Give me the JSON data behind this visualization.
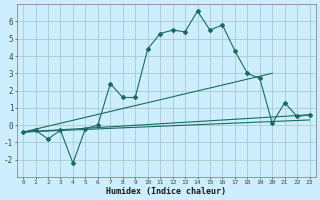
{
  "xlabel": "Humidex (Indice chaleur)",
  "background_color": "#cceeff",
  "grid_color": "#aacccc",
  "line_color": "#1a6b5e",
  "x_values": [
    0,
    1,
    2,
    3,
    4,
    5,
    6,
    7,
    8,
    9,
    10,
    11,
    12,
    13,
    14,
    15,
    16,
    17,
    18,
    19,
    20,
    21,
    22,
    23
  ],
  "series1": [
    -0.4,
    -0.3,
    -0.8,
    -0.3,
    -2.2,
    -0.2,
    0.0,
    2.4,
    1.6,
    1.6,
    4.4,
    5.3,
    5.5,
    5.4,
    6.6,
    5.5,
    5.8,
    4.3,
    3.0,
    2.7,
    0.1,
    1.3,
    0.5,
    0.6
  ],
  "line_start_x": 0,
  "line_start_y": -0.4,
  "line1_end_x": 23,
  "line1_end_y": 0.6,
  "line2_end_x": 20,
  "line2_end_y": 3.0,
  "line3_end_x": 23,
  "line3_end_y": 0.3,
  "ylim": [
    -3,
    7
  ],
  "xlim": [
    -0.5,
    23.5
  ],
  "yticks": [
    -2,
    -1,
    0,
    1,
    2,
    3,
    4,
    5,
    6
  ],
  "xticks": [
    0,
    1,
    2,
    3,
    4,
    5,
    6,
    7,
    8,
    9,
    10,
    11,
    12,
    13,
    14,
    15,
    16,
    17,
    18,
    19,
    20,
    21,
    22,
    23
  ]
}
